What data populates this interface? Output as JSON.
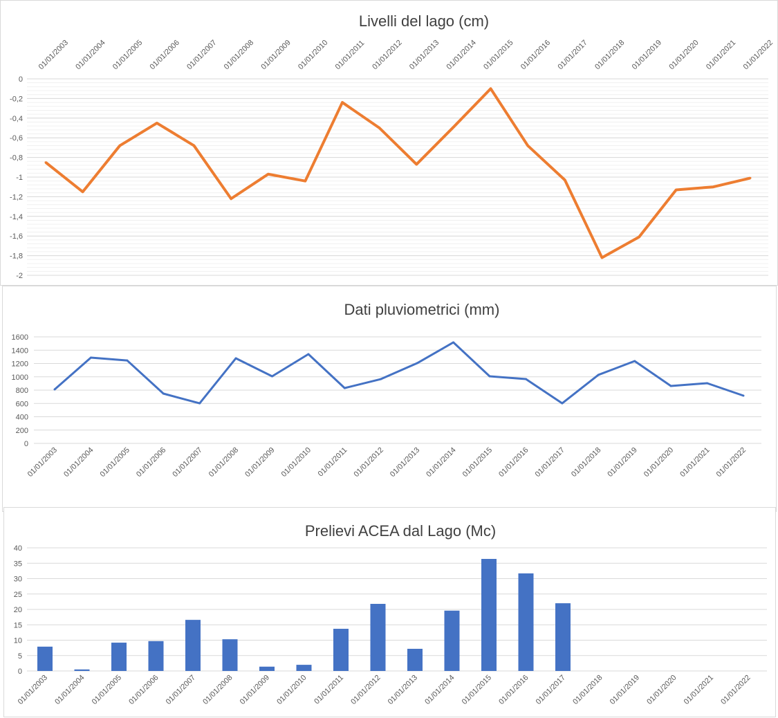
{
  "chart_data": [
    {
      "type": "line",
      "title": "Livelli del lago (cm)",
      "categories": [
        "01/01/2003",
        "01/01/2004",
        "01/01/2005",
        "01/01/2006",
        "01/01/2007",
        "01/01/2008",
        "01/01/2009",
        "01/01/2010",
        "01/01/2011",
        "01/01/2012",
        "01/01/2013",
        "01/01/2014",
        "01/01/2015",
        "01/01/2016",
        "01/01/2017",
        "01/01/2018",
        "01/01/2019",
        "01/01/2020",
        "01/01/2021",
        "01/01/2022"
      ],
      "values": [
        -0.85,
        -1.15,
        -0.68,
        -0.45,
        -0.68,
        -1.22,
        -0.97,
        -1.04,
        -0.24,
        -0.5,
        -0.87,
        -0.49,
        -0.1,
        -0.68,
        -1.03,
        -1.82,
        -1.61,
        -1.13,
        -1.1,
        -1.01
      ],
      "ylim": [
        -2,
        0
      ],
      "yticks": [
        "0",
        "-0,2",
        "-0,4",
        "-0,6",
        "-0,8",
        "-1",
        "-1,2",
        "-1,4",
        "-1,6",
        "-1,8",
        "-2"
      ],
      "xaxis_position": "top",
      "grid": true,
      "minor_grid": true,
      "color": "#ED7D31"
    },
    {
      "type": "line",
      "title": "Dati pluviometrici (mm)",
      "categories": [
        "01/01/2003",
        "01/01/2004",
        "01/01/2005",
        "01/01/2006",
        "01/01/2007",
        "01/01/2008",
        "01/01/2009",
        "01/01/2010",
        "01/01/2011",
        "01/01/2012",
        "01/01/2013",
        "01/01/2014",
        "01/01/2015",
        "01/01/2016",
        "01/01/2017",
        "01/01/2018",
        "01/01/2019",
        "01/01/2020",
        "01/01/2021",
        "01/01/2022"
      ],
      "values": [
        810,
        1288,
        1246,
        748,
        602,
        1278,
        1008,
        1340,
        831,
        966,
        1205,
        1517,
        1008,
        966,
        602,
        1029,
        1236,
        862,
        904,
        717
      ],
      "ylim": [
        0,
        1600
      ],
      "yticks": [
        "0",
        "200",
        "400",
        "600",
        "800",
        "1000",
        "1200",
        "1400",
        "1600"
      ],
      "xaxis_position": "bottom",
      "grid": true,
      "color": "#4472C4"
    },
    {
      "type": "bar",
      "title": "Prelievi ACEA dal Lago (Mc)",
      "categories": [
        "01/01/2003",
        "01/01/2004",
        "01/01/2005",
        "01/01/2006",
        "01/01/2007",
        "01/01/2008",
        "01/01/2009",
        "01/01/2010",
        "01/01/2011",
        "01/01/2012",
        "01/01/2013",
        "01/01/2014",
        "01/01/2015",
        "01/01/2016",
        "01/01/2017",
        "01/01/2018",
        "01/01/2019",
        "01/01/2020",
        "01/01/2021",
        "01/01/2022"
      ],
      "values": [
        7.9,
        0.5,
        9.2,
        9.7,
        16.6,
        10.3,
        1.4,
        2.0,
        13.7,
        21.8,
        7.2,
        19.6,
        36.4,
        31.7,
        22.0,
        null,
        null,
        null,
        null,
        null
      ],
      "ylim": [
        0,
        40
      ],
      "yticks": [
        "0",
        "5",
        "10",
        "15",
        "20",
        "25",
        "30",
        "35",
        "40"
      ],
      "xaxis_position": "bottom",
      "grid": true,
      "color": "#4472C4"
    }
  ]
}
